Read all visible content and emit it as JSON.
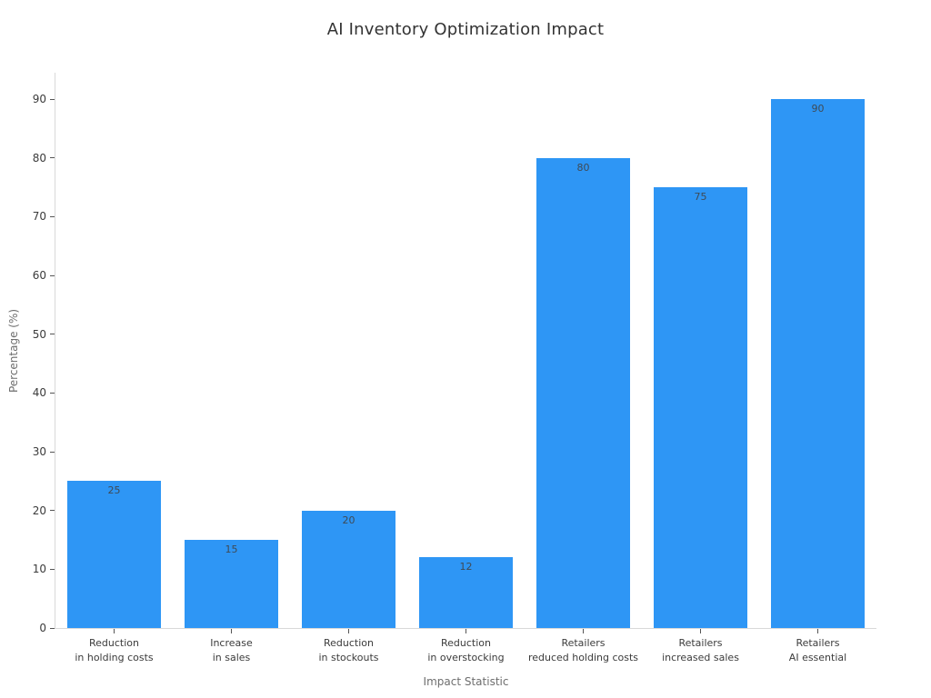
{
  "chart_data": {
    "type": "bar",
    "title": "AI Inventory Optimization Impact",
    "xlabel": "Impact Statistic",
    "ylabel": "Percentage (%)",
    "categories": [
      "Reduction\nin holding costs",
      "Increase\nin sales",
      "Reduction\nin stockouts",
      "Reduction\nin overstocking",
      "Retailers\nreduced holding costs",
      "Retailers\nincreased sales",
      "Retailers\nAI essential"
    ],
    "values": [
      25,
      15,
      20,
      12,
      80,
      75,
      90
    ],
    "bar_labels": [
      "25",
      "15",
      "20",
      "12",
      "80",
      "75",
      "90"
    ],
    "yticks": [
      0,
      10,
      20,
      30,
      40,
      50,
      60,
      70,
      80,
      90
    ],
    "ylim": [
      0,
      94.5
    ],
    "grid": false,
    "legend": null,
    "colors": {
      "bar": "#2e96f5",
      "bar_label": "#3f4a55",
      "axis_line": "#d9d9d9",
      "tick_mark": "#555555",
      "tick_label": "#3b3b3b",
      "axis_title": "#6e6e6e",
      "title": "#333333",
      "background": "#ffffff"
    }
  }
}
